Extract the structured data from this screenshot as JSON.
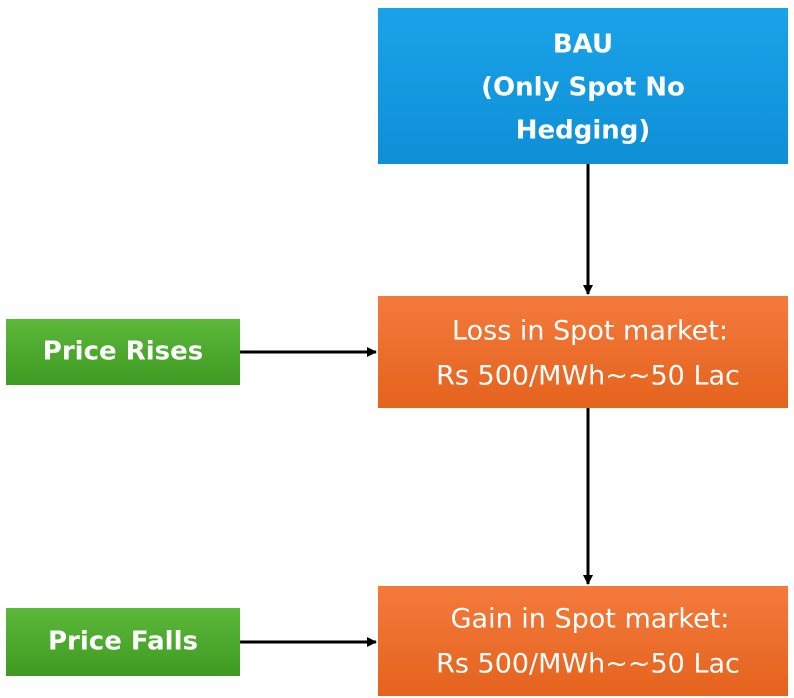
{
  "nodes": [
    {
      "lines": [
        "BAU",
        "(Only Spot No",
        "Hedging)"
      ]
    },
    {
      "lines": [
        "Loss in Spot market:",
        "Rs 500/MWh~~50 Lac"
      ]
    },
    {
      "lines": [
        "Gain in Spot market:",
        "Rs 500/MWh~~50 Lac"
      ]
    },
    {
      "lines": [
        "Price Rises"
      ]
    },
    {
      "lines": [
        "Price Falls"
      ]
    }
  ]
}
